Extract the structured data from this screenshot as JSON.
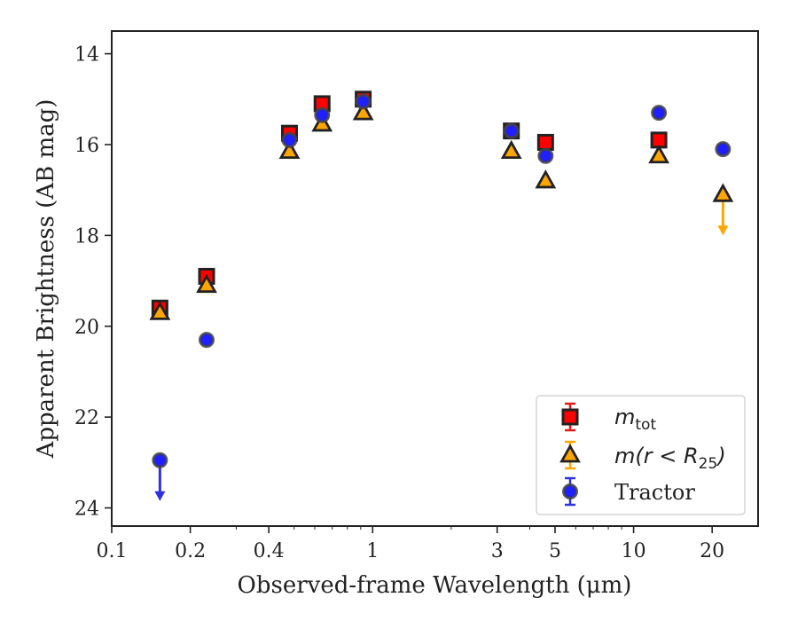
{
  "chart_data": {
    "type": "scatter",
    "xlabel": "Observed-frame Wavelength (μm)",
    "ylabel": "Apparent Brightness (AB mag)",
    "xscale": "log",
    "xlim": [
      0.1,
      30
    ],
    "ylim": [
      24.4,
      13.5
    ],
    "y_inverted": true,
    "grid": false,
    "legend_position": "lower-right",
    "x_ticks": [
      {
        "value": 0.1,
        "label": "0.1"
      },
      {
        "value": 0.2,
        "label": "0.2"
      },
      {
        "value": 0.4,
        "label": "0.4"
      },
      {
        "value": 1,
        "label": "1"
      },
      {
        "value": 3,
        "label": "3"
      },
      {
        "value": 5,
        "label": "5"
      },
      {
        "value": 10,
        "label": "10"
      },
      {
        "value": 20,
        "label": "20"
      }
    ],
    "y_ticks": [
      {
        "value": 14,
        "label": "14"
      },
      {
        "value": 16,
        "label": "16"
      },
      {
        "value": 18,
        "label": "18"
      },
      {
        "value": 20,
        "label": "20"
      },
      {
        "value": 22,
        "label": "22"
      },
      {
        "value": 24,
        "label": "24"
      }
    ],
    "series": [
      {
        "id": "mtot",
        "legend_base": "m",
        "legend_sub": "tot",
        "marker": "square",
        "fill": "#ff0000",
        "edge": "#222222",
        "errcolor": "#e31a1c",
        "points": [
          {
            "x": 0.153,
            "y": 19.6
          },
          {
            "x": 0.231,
            "y": 18.9
          },
          {
            "x": 0.48,
            "y": 15.75
          },
          {
            "x": 0.64,
            "y": 15.1
          },
          {
            "x": 0.92,
            "y": 15.0
          },
          {
            "x": 3.4,
            "y": 15.7
          },
          {
            "x": 4.6,
            "y": 15.95
          },
          {
            "x": 12.5,
            "y": 15.9
          }
        ]
      },
      {
        "id": "mr25",
        "legend_base": "m",
        "legend_mid": "(r < R",
        "legend_sub": "25",
        "legend_end": ")",
        "marker": "triangle",
        "fill": "#ffa500",
        "edge": "#222222",
        "errcolor": "#ffa500",
        "points": [
          {
            "x": 0.153,
            "y": 19.7
          },
          {
            "x": 0.231,
            "y": 19.1
          },
          {
            "x": 0.48,
            "y": 16.15
          },
          {
            "x": 0.64,
            "y": 15.55
          },
          {
            "x": 0.92,
            "y": 15.3
          },
          {
            "x": 3.4,
            "y": 16.15
          },
          {
            "x": 4.6,
            "y": 16.8
          },
          {
            "x": 12.5,
            "y": 16.25
          },
          {
            "x": 22,
            "y": 17.1,
            "upper_limit": true
          }
        ]
      },
      {
        "id": "tractor",
        "name": "Tractor",
        "marker": "circle",
        "fill": "#1f1fff",
        "edge": "#444444",
        "errcolor": "#3030e0",
        "points": [
          {
            "x": 0.153,
            "y": 22.95,
            "upper_limit": true
          },
          {
            "x": 0.231,
            "y": 20.3
          },
          {
            "x": 0.48,
            "y": 15.9
          },
          {
            "x": 0.64,
            "y": 15.35
          },
          {
            "x": 0.92,
            "y": 15.05
          },
          {
            "x": 3.4,
            "y": 15.7
          },
          {
            "x": 4.6,
            "y": 16.25
          },
          {
            "x": 12.5,
            "y": 15.3
          },
          {
            "x": 22,
            "y": 16.1
          }
        ]
      }
    ]
  }
}
